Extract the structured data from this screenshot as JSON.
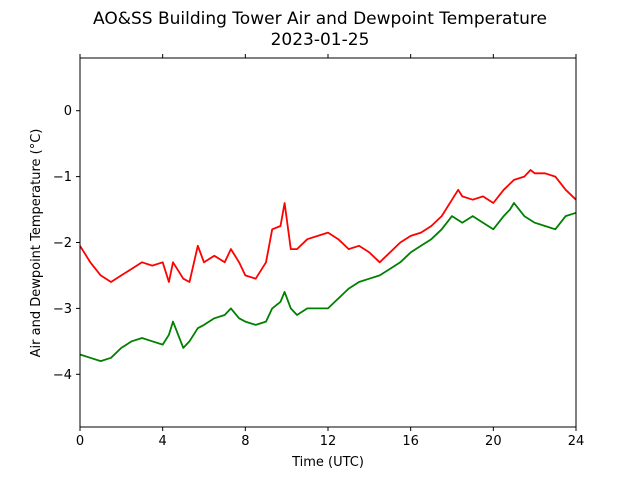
{
  "chart_data": {
    "type": "line",
    "title": "AO&SS Building Tower Air and Dewpoint Temperature",
    "subtitle": "2023-01-25",
    "xlabel": "Time (UTC)",
    "ylabel": "Air and Dewpoint Temperature (°C)",
    "xlim": [
      0,
      24
    ],
    "ylim": [
      -4.8,
      0.8
    ],
    "xticks": [
      0,
      4,
      8,
      12,
      16,
      20,
      24
    ],
    "yticks": [
      0,
      -1,
      -2,
      -3,
      -4
    ],
    "ytick_labels": [
      "0",
      "−1",
      "−2",
      "−3",
      "−4"
    ],
    "grid": false,
    "legend": "none",
    "series": [
      {
        "color": "#ff0000",
        "x": [
          0,
          0.5,
          1,
          1.5,
          2,
          2.5,
          3,
          3.5,
          4,
          4.3,
          4.5,
          5,
          5.3,
          5.7,
          6,
          6.5,
          7,
          7.3,
          7.7,
          8,
          8.5,
          9,
          9.3,
          9.7,
          9.9,
          10.2,
          10.5,
          11,
          11.5,
          12,
          12.5,
          13,
          13.5,
          14,
          14.5,
          15,
          15.5,
          16,
          16.5,
          17,
          17.5,
          18,
          18.3,
          18.5,
          19,
          19.5,
          20,
          20.5,
          21,
          21.5,
          21.8,
          22,
          22.5,
          23,
          23.5,
          24
        ],
        "y": [
          -2.05,
          -2.3,
          -2.5,
          -2.6,
          -2.5,
          -2.4,
          -2.3,
          -2.35,
          -2.3,
          -2.6,
          -2.3,
          -2.55,
          -2.6,
          -2.05,
          -2.3,
          -2.2,
          -2.3,
          -2.1,
          -2.3,
          -2.5,
          -2.55,
          -2.3,
          -1.8,
          -1.75,
          -1.4,
          -2.1,
          -2.1,
          -1.95,
          -1.9,
          -1.85,
          -1.95,
          -2.1,
          -2.05,
          -2.15,
          -2.3,
          -2.15,
          -2.0,
          -1.9,
          -1.85,
          -1.75,
          -1.6,
          -1.35,
          -1.2,
          -1.3,
          -1.35,
          -1.3,
          -1.4,
          -1.2,
          -1.05,
          -1.0,
          -0.9,
          -0.95,
          -0.95,
          -1.0,
          -1.2,
          -1.35
        ]
      },
      {
        "color": "#008000",
        "x": [
          0,
          0.5,
          1,
          1.5,
          2,
          2.5,
          3,
          3.5,
          4,
          4.3,
          4.5,
          5,
          5.3,
          5.7,
          6,
          6.5,
          7,
          7.3,
          7.7,
          8,
          8.5,
          9,
          9.3,
          9.7,
          9.9,
          10.2,
          10.5,
          11,
          11.5,
          12,
          12.5,
          13,
          13.5,
          14,
          14.5,
          15,
          15.5,
          16,
          16.5,
          17,
          17.5,
          18,
          18.5,
          19,
          19.5,
          20,
          20.5,
          20.8,
          21,
          21.5,
          22,
          22.5,
          23,
          23.5,
          24
        ],
        "y": [
          -3.7,
          -3.75,
          -3.8,
          -3.75,
          -3.6,
          -3.5,
          -3.45,
          -3.5,
          -3.55,
          -3.4,
          -3.2,
          -3.6,
          -3.5,
          -3.3,
          -3.25,
          -3.15,
          -3.1,
          -3.0,
          -3.15,
          -3.2,
          -3.25,
          -3.2,
          -3.0,
          -2.9,
          -2.75,
          -3.0,
          -3.1,
          -3.0,
          -3.0,
          -3.0,
          -2.85,
          -2.7,
          -2.6,
          -2.55,
          -2.5,
          -2.4,
          -2.3,
          -2.15,
          -2.05,
          -1.95,
          -1.8,
          -1.6,
          -1.7,
          -1.6,
          -1.7,
          -1.8,
          -1.6,
          -1.5,
          -1.4,
          -1.6,
          -1.7,
          -1.75,
          -1.8,
          -1.6,
          -1.55
        ]
      }
    ]
  }
}
